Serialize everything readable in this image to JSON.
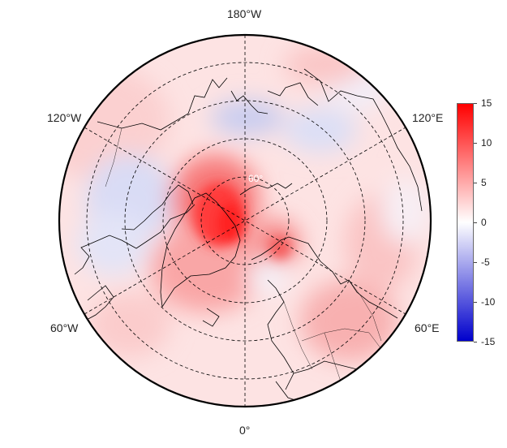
{
  "map": {
    "projection": "north-polar-stereographic",
    "graticule_lat_label": "60°",
    "longitude_labels": {
      "top": "180°W",
      "bottom": "0°",
      "upper_left": "120°W",
      "upper_right": "120°E",
      "lower_left": "60°W",
      "lower_right": "60°E"
    }
  },
  "colorbar": {
    "min": -15,
    "max": 15,
    "colors": {
      "low": "#0000cc",
      "mid": "#ffffff",
      "high": "#ff0000"
    },
    "tick_labels": [
      "15",
      "10",
      "5",
      "0",
      "-5",
      "-10",
      "-15"
    ]
  },
  "colors": {
    "warm_anomaly": "#ff4040",
    "cool_anomaly": "#c8cdf0",
    "coastline": "#000000",
    "graticule": "#000000"
  }
}
